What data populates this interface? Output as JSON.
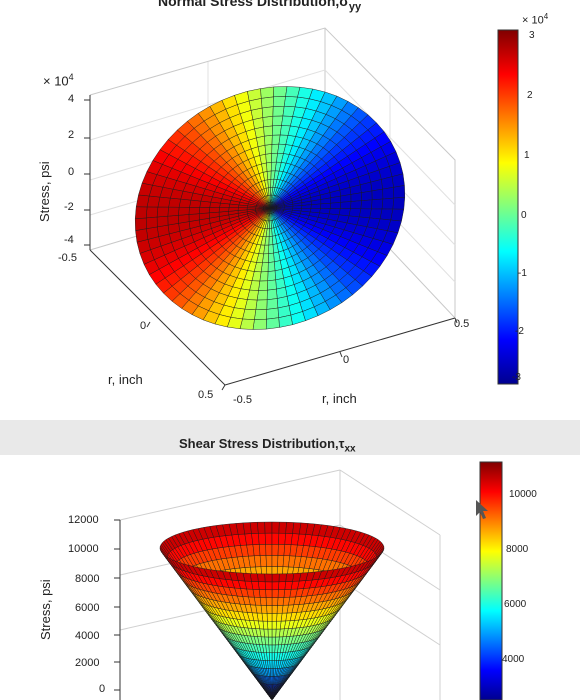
{
  "chart_data": [
    {
      "type": "surface",
      "title": "Normal Stress Distribution,σ",
      "title_subscript": "yy",
      "xlabel": "r, inch",
      "ylabel": "r, inch",
      "zlabel": "Stress, psi",
      "z_exponent": "× 10",
      "z_exponent_power": "4",
      "z_ticks": [
        "4",
        "2",
        "0",
        "-2",
        "-4"
      ],
      "x_ticks": [
        "-0.5",
        "0",
        "0.5"
      ],
      "y_ticks": [
        "-0.5",
        "0",
        "0.5"
      ],
      "z_range": [
        -4,
        4
      ],
      "colorbar": {
        "colormap": "jet",
        "range": [
          -3,
          3
        ],
        "exponent": "× 10",
        "exponent_power": "4",
        "ticks": [
          "3",
          "2",
          "1",
          "0",
          "-1",
          "-2",
          "-3"
        ]
      }
    },
    {
      "type": "surface",
      "title": "Shear Stress Distribution,τ",
      "title_subscript": "xx",
      "zlabel": "Stress, psi",
      "z_ticks": [
        "12000",
        "10000",
        "8000",
        "6000",
        "4000",
        "2000",
        "0"
      ],
      "z_range": [
        0,
        12000
      ],
      "colorbar": {
        "colormap": "jet",
        "range": [
          0,
          11000
        ],
        "ticks": [
          "10000",
          "8000",
          "6000",
          "4000"
        ]
      }
    }
  ]
}
